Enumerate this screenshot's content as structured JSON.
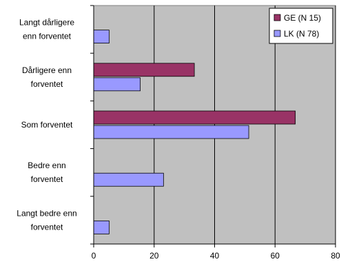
{
  "chart_data": {
    "type": "bar",
    "orientation": "horizontal",
    "title": "",
    "xlabel": "",
    "ylabel": "",
    "xlim": [
      0,
      80
    ],
    "xticks": [
      0,
      20,
      40,
      60,
      80
    ],
    "grid": true,
    "legend_position": "top-right",
    "plot_background": "#c0c0c0",
    "categories": [
      [
        "Langt dårligere",
        "enn forventet"
      ],
      [
        "Dårligere enn",
        "forventet"
      ],
      [
        "Som forventet"
      ],
      [
        "Bedre enn",
        "forventet"
      ],
      [
        "Langt bedre enn",
        "forventet"
      ]
    ],
    "series": [
      {
        "name": "GE (N 15)",
        "color": "#993366",
        "values": [
          0,
          33.3,
          66.7,
          0,
          0
        ]
      },
      {
        "name": "LK (N 78)",
        "color": "#9999ff",
        "values": [
          5.1,
          15.4,
          51.3,
          23.1,
          5.1
        ]
      }
    ]
  }
}
